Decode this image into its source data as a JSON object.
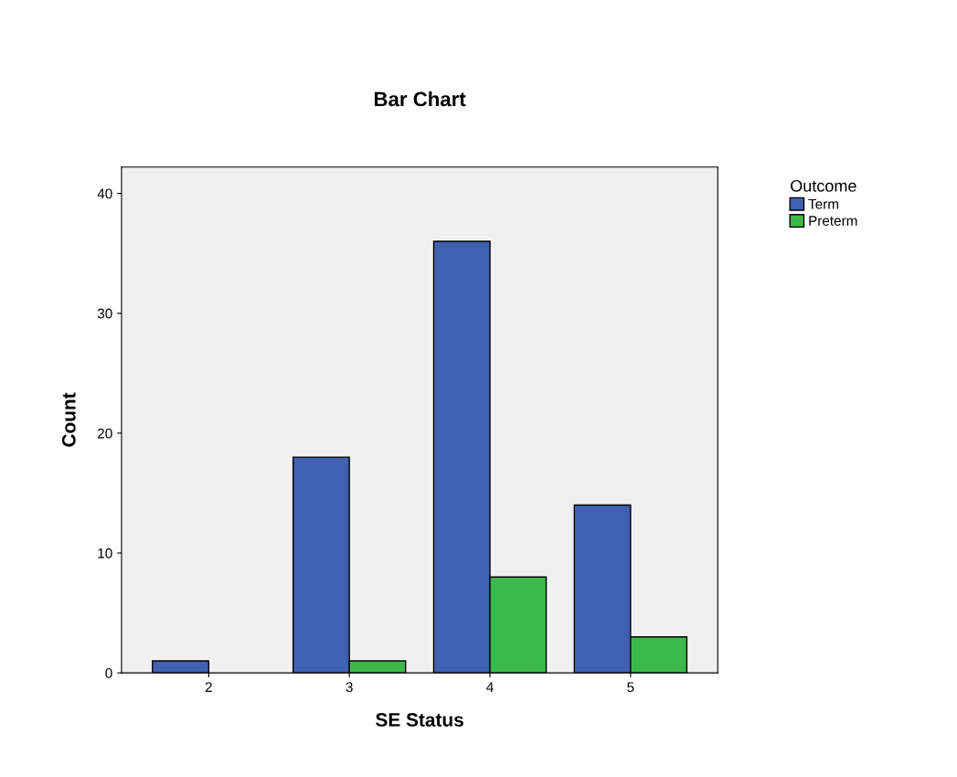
{
  "chart_data": {
    "type": "bar",
    "title": "Bar Chart",
    "xlabel": "SE Status",
    "ylabel": "Count",
    "categories": [
      "2",
      "3",
      "4",
      "5"
    ],
    "series": [
      {
        "name": "Term",
        "color": "#4060b0",
        "values": [
          1,
          18,
          36,
          14
        ]
      },
      {
        "name": "Preterm",
        "color": "#3cb94a",
        "values": [
          null,
          1,
          8,
          3
        ]
      }
    ],
    "ylim": [
      0,
      42.2
    ],
    "yticks": [
      0,
      10,
      20,
      30,
      40
    ],
    "legend": "top right",
    "legend_title": "Outcome",
    "grid": false
  }
}
